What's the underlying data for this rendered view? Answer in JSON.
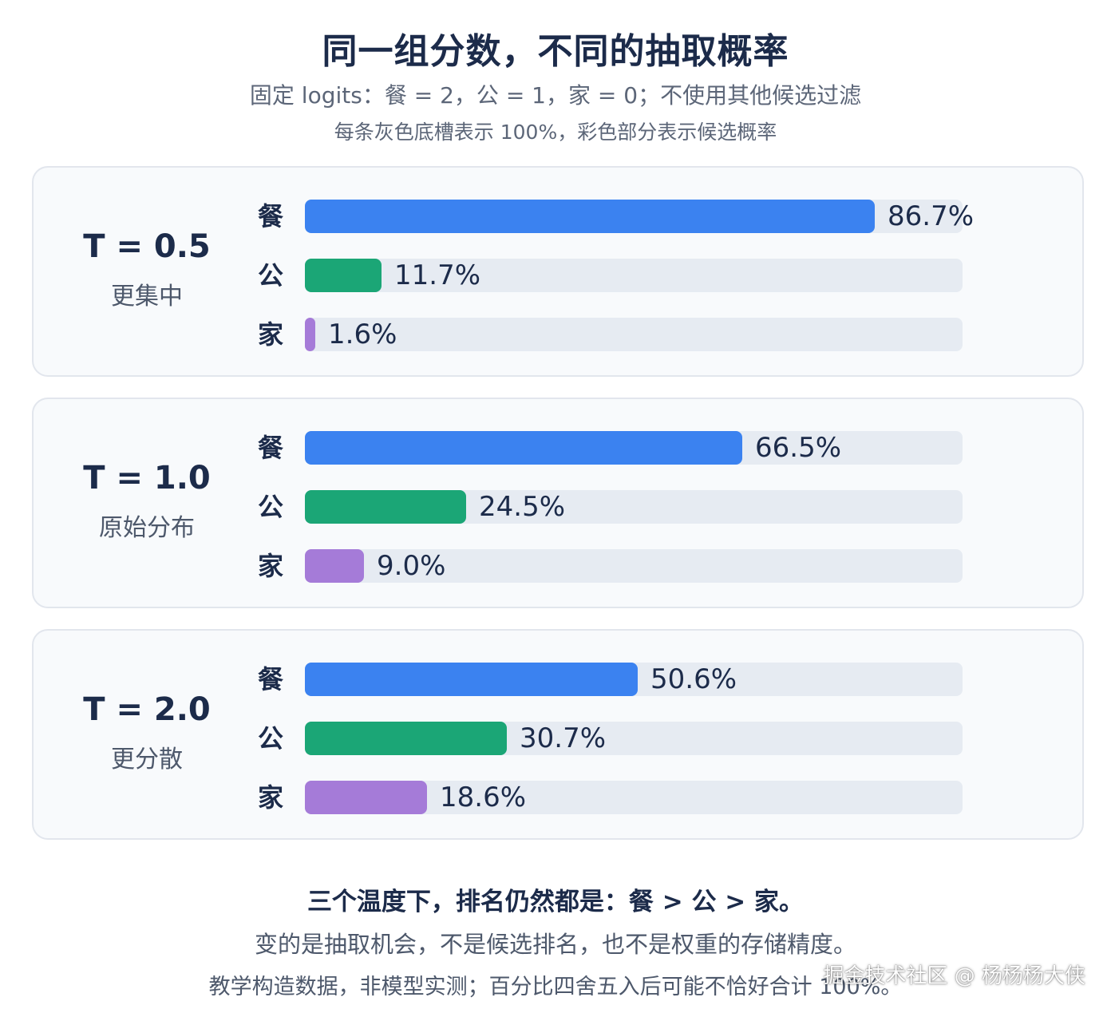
{
  "header": {
    "title": "同一组分数，不同的抽取概率",
    "subtitle": "固定 logits：餐 = 2，公 = 1，家 = 0；不使用其他候选过滤",
    "subtitle2": "每条灰色底槽表示 100%，彩色部分表示候选概率"
  },
  "colors": {
    "餐": "#3b82f0",
    "公": "#1ba676",
    "家": "#a57bd8",
    "track": "#e6ebf2"
  },
  "chart_data": {
    "type": "bar",
    "orientation": "horizontal",
    "xlim": [
      0,
      100
    ],
    "unit": "%",
    "categories": [
      "餐",
      "公",
      "家"
    ],
    "panels": [
      {
        "label": "T = 0.5",
        "description": "更集中",
        "values": [
          86.7,
          11.7,
          1.6
        ],
        "value_labels": [
          "86.7%",
          "11.7%",
          "1.6%"
        ]
      },
      {
        "label": "T = 1.0",
        "description": "原始分布",
        "values": [
          66.5,
          24.5,
          9.0
        ],
        "value_labels": [
          "66.5%",
          "24.5%",
          "9.0%"
        ]
      },
      {
        "label": "T = 2.0",
        "description": "更分散",
        "values": [
          50.6,
          30.7,
          18.6
        ],
        "value_labels": [
          "50.6%",
          "30.7%",
          "18.6%"
        ]
      }
    ]
  },
  "footer": {
    "line1": "三个温度下，排名仍然都是：餐 > 公 > 家。",
    "line2": "变的是抽取机会，不是候选排名，也不是权重的存储精度。",
    "line3": "教学构造数据，非模型实测；百分比四舍五入后可能不恰好合计 100%。"
  },
  "watermark": "掘金技术社区 @ 杨杨杨大侠"
}
